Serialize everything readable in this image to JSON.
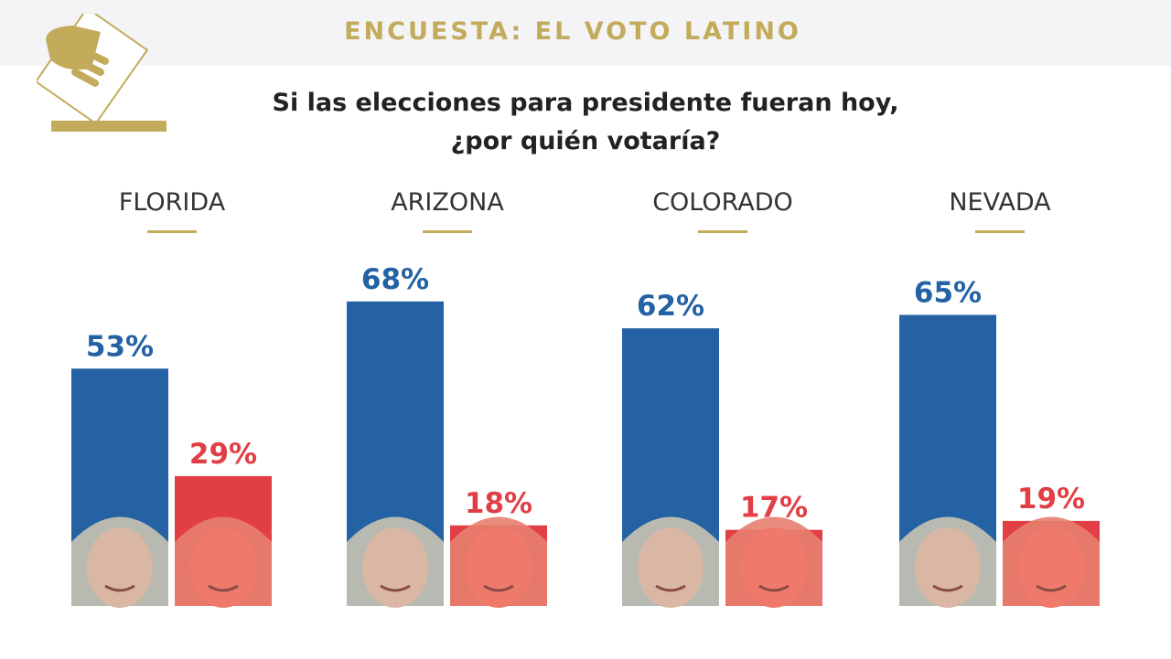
{
  "header": {
    "title": "ENCUESTA: EL VOTO LATINO",
    "logo_icon": "ballot-box-icon"
  },
  "question": {
    "line1": "Si las elecciones para presidente fueran hoy,",
    "line2": "¿por quién votaría?"
  },
  "colors": {
    "gold": "#c2ab5a",
    "blue": "#2462a3",
    "red": "#e23e45"
  },
  "chart_data": {
    "type": "bar",
    "categories": [
      "FLORIDA",
      "ARIZONA",
      "COLORADO",
      "NEVADA"
    ],
    "series": [
      {
        "values": [
          53,
          68,
          62,
          65
        ],
        "labels": [
          "53%",
          "68%",
          "62%",
          "65%"
        ],
        "color": "#2462a3",
        "photo_icon": "candidate-photo-blue"
      },
      {
        "values": [
          29,
          18,
          17,
          19
        ],
        "labels": [
          "29%",
          "18%",
          "17%",
          "19%"
        ],
        "color": "#e23e45",
        "photo_icon": "candidate-photo-red"
      }
    ],
    "ylim": [
      0,
      100
    ],
    "grid": false,
    "legend": "none"
  }
}
